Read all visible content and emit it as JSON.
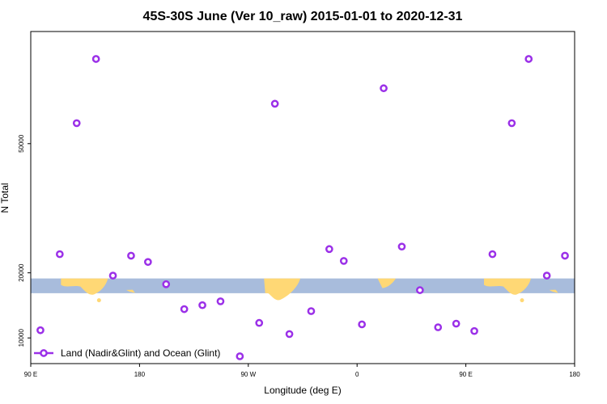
{
  "chart_data": {
    "type": "scatter",
    "title": "45S-30S June (Ver 10_raw)   2015-01-01 to 2020-12-31",
    "xlabel": "Longitude (deg E)",
    "ylabel": "N Total",
    "xlim": [
      90,
      540
    ],
    "ylim": [
      7000,
      87000
    ],
    "y_scale": "sqrt",
    "x_ticks": [
      {
        "value": 90,
        "label": "90 E"
      },
      {
        "value": 180,
        "label": "180"
      },
      {
        "value": 270,
        "label": "90 W"
      },
      {
        "value": 360,
        "label": "0"
      },
      {
        "value": 450,
        "label": "90 E"
      },
      {
        "value": 540,
        "label": "180"
      }
    ],
    "y_ticks": [
      {
        "value": 10000,
        "label": "10000"
      },
      {
        "value": 20000,
        "label": "20000"
      },
      {
        "value": 50000,
        "label": "50000"
      }
    ],
    "series": [
      {
        "name": "Land (Nadir&Glint) and Ocean (Glint)",
        "color": "#9b30e8",
        "x": [
          98,
          114,
          128,
          144,
          158,
          173,
          187,
          202,
          217,
          232,
          247,
          263,
          279,
          292,
          304,
          322,
          337,
          349,
          364,
          382,
          397,
          412,
          427,
          442,
          457,
          472,
          488,
          502,
          517,
          532
        ],
        "y": [
          11000,
          23500,
          56000,
          77000,
          19500,
          23200,
          22000,
          18000,
          14000,
          14600,
          15200,
          7800,
          12000,
          62000,
          10500,
          13700,
          24500,
          22200,
          11800,
          67000,
          25000,
          17000,
          11400,
          11900,
          10900,
          23500,
          56000,
          77000,
          19500,
          23200
        ]
      }
    ],
    "legend": {
      "position": "bottom-left",
      "label": "Land (Nadir&Glint) and Ocean (Glint)"
    },
    "map_band": {
      "ymin": 16500,
      "ymax": 19000,
      "ocean_color": "#a8bcdc",
      "land_color": "#ffd875"
    }
  }
}
